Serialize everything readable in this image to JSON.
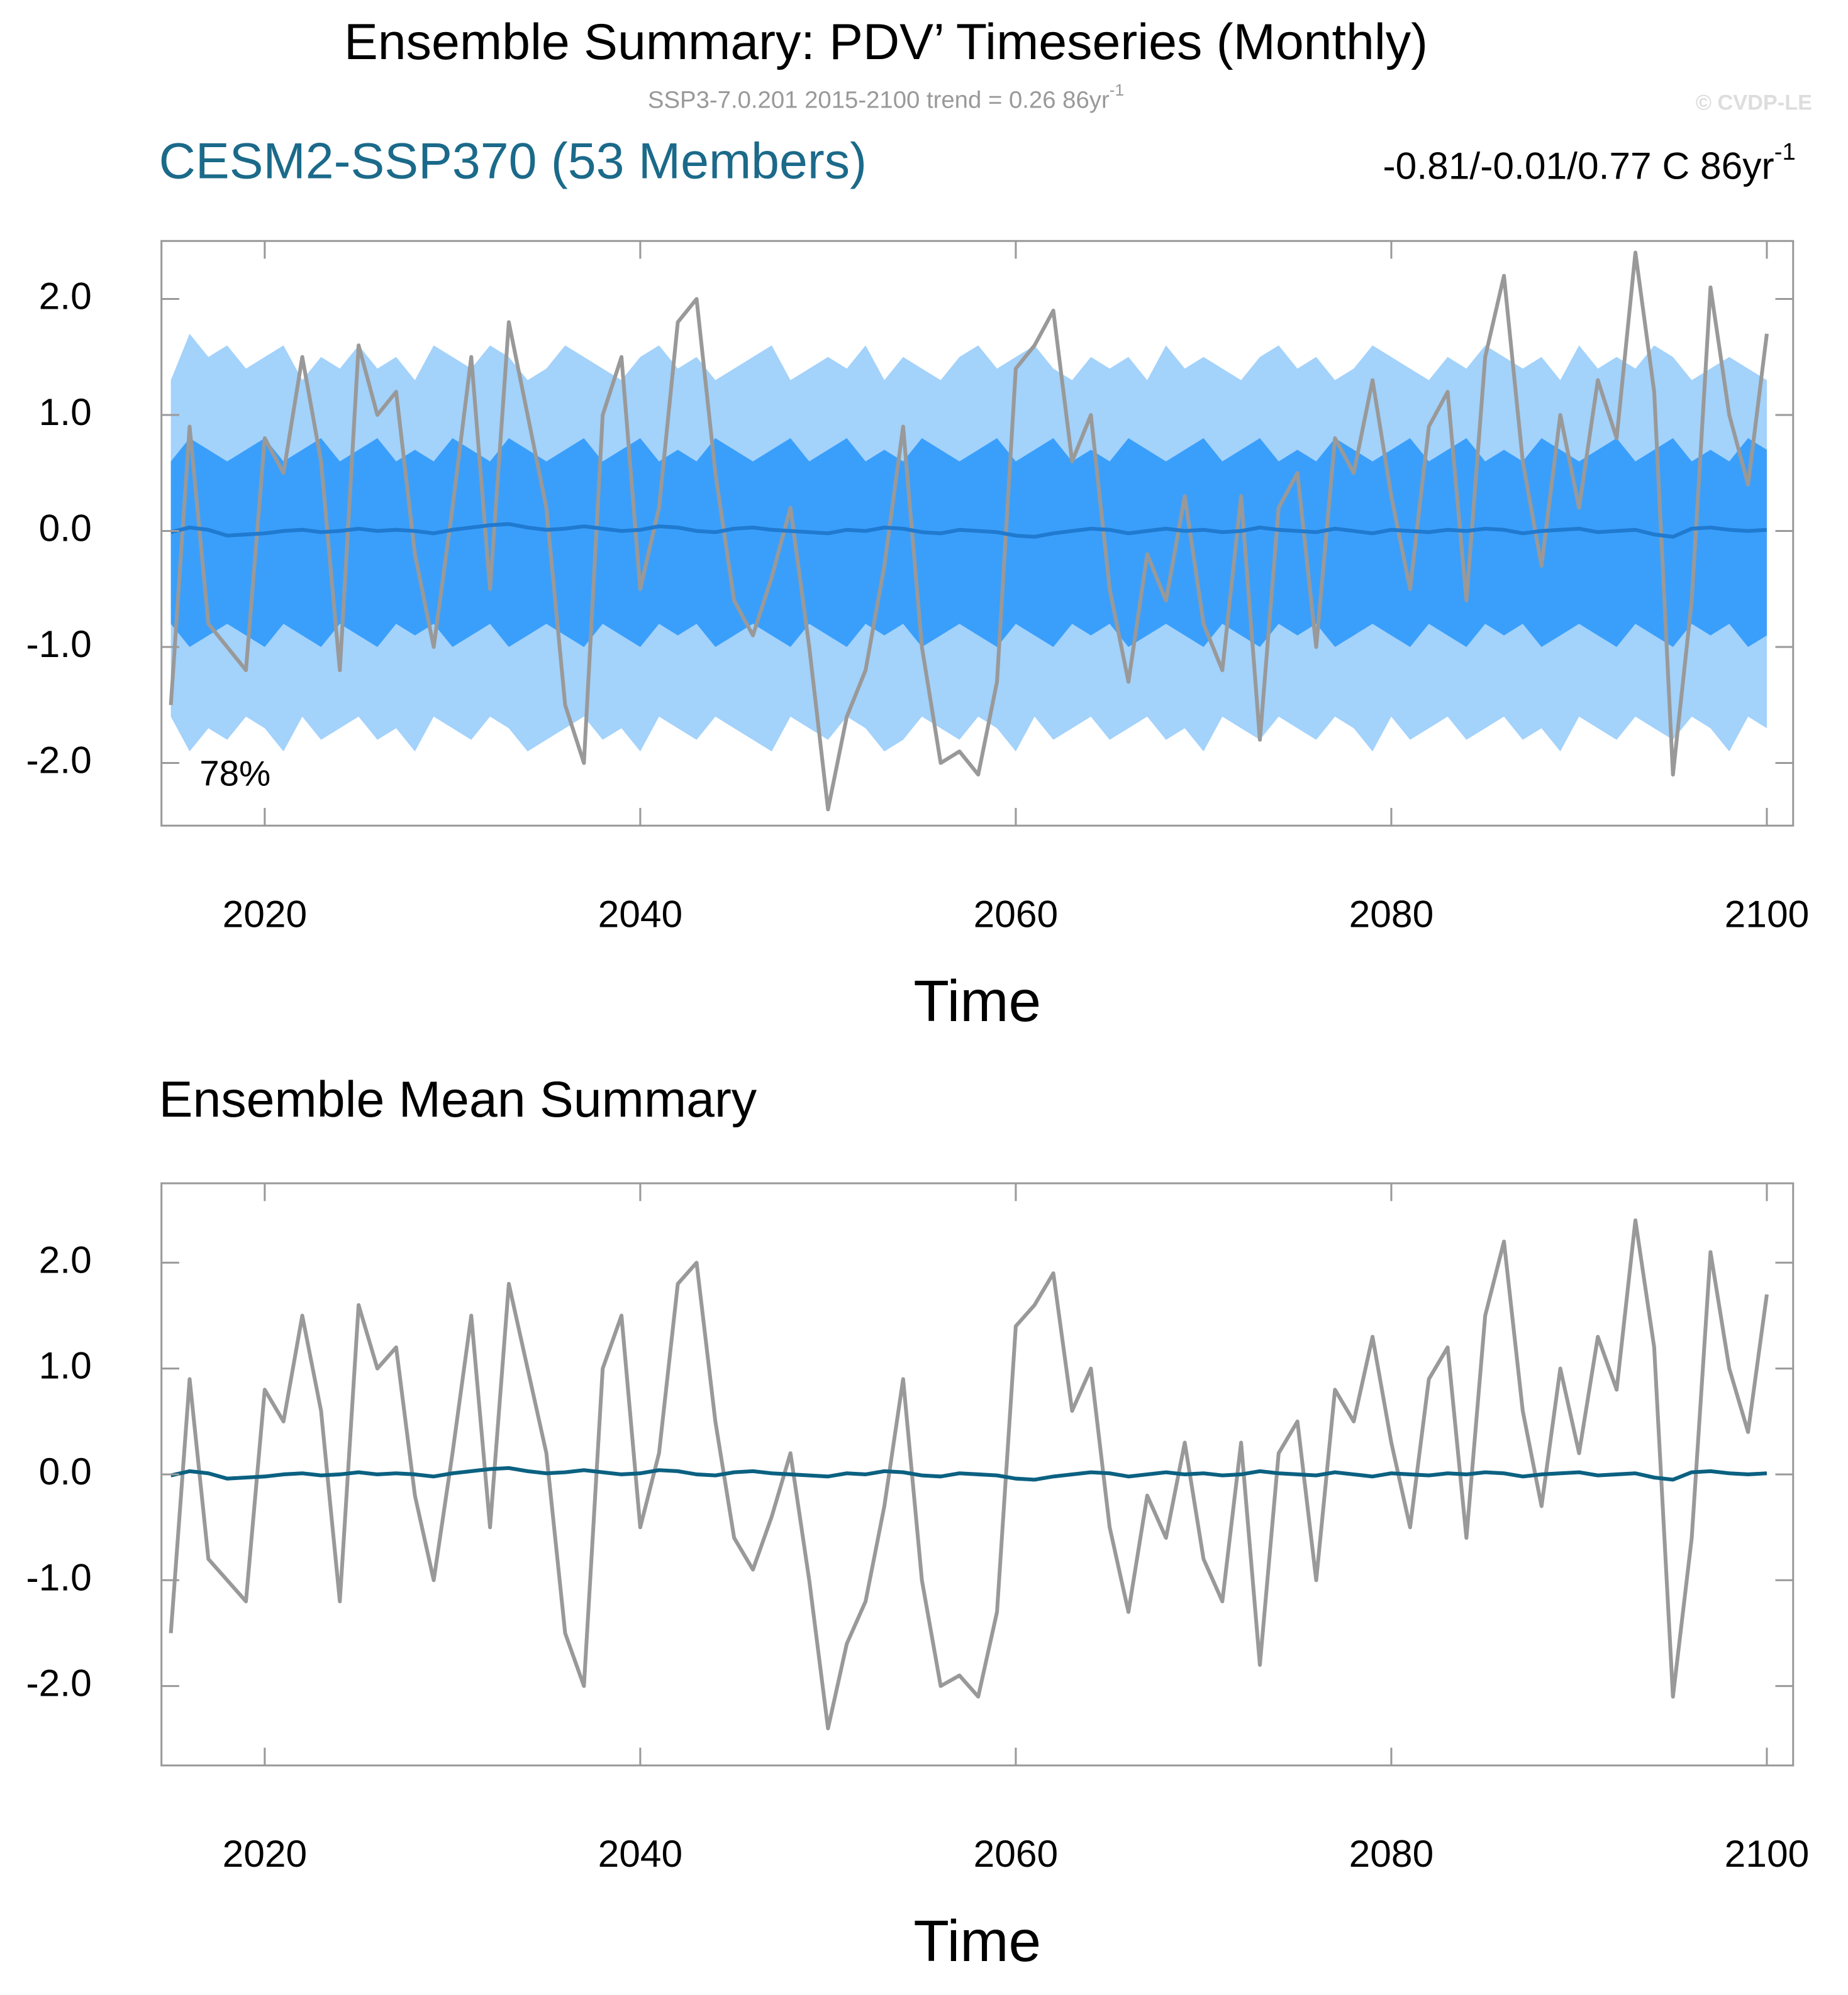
{
  "chart_data": [
    {
      "type": "line",
      "title": "Ensemble Summary: PDV’ Timeseries (Monthly)",
      "subtitle": {
        "text": "SSP3-7.0.201 2015-2100 trend = 0.26 86yr",
        "sup": "-1"
      },
      "copyright": "© CVDP-LE",
      "left_title": "CESM2-SSP370 (53 Members)",
      "left_title_color": "#1b6a8a",
      "right_title": {
        "text": "-0.81/-0.01/0.77 C 86yr",
        "sup": "-1"
      },
      "annotation": "78%",
      "xlabel": "Time",
      "x": [
        2015,
        2016,
        2017,
        2018,
        2019,
        2020,
        2021,
        2022,
        2023,
        2024,
        2025,
        2026,
        2027,
        2028,
        2029,
        2030,
        2031,
        2032,
        2033,
        2034,
        2035,
        2036,
        2037,
        2038,
        2039,
        2040,
        2041,
        2042,
        2043,
        2044,
        2045,
        2046,
        2047,
        2048,
        2049,
        2050,
        2051,
        2052,
        2053,
        2054,
        2055,
        2056,
        2057,
        2058,
        2059,
        2060,
        2061,
        2062,
        2063,
        2064,
        2065,
        2066,
        2067,
        2068,
        2069,
        2070,
        2071,
        2072,
        2073,
        2074,
        2075,
        2076,
        2077,
        2078,
        2079,
        2080,
        2081,
        2082,
        2083,
        2084,
        2085,
        2086,
        2087,
        2088,
        2089,
        2090,
        2091,
        2092,
        2093,
        2094,
        2095,
        2096,
        2097,
        2098,
        2099,
        2100
      ],
      "xlim": [
        2014.5,
        2101.4
      ],
      "xticks": [
        2020,
        2040,
        2060,
        2080,
        2100
      ],
      "ylim": [
        -2.54,
        2.5
      ],
      "yticks": [
        {
          "value": -2,
          "label": "-2.0"
        },
        {
          "value": -1,
          "label": "-1.0"
        },
        {
          "value": 0,
          "label": "0.0"
        },
        {
          "value": 1,
          "label": "1.0"
        },
        {
          "value": 2,
          "label": "2.0"
        }
      ],
      "bands": [
        {
          "color": "#a3d2fb",
          "upper": [
            1.3,
            1.7,
            1.5,
            1.6,
            1.4,
            1.5,
            1.6,
            1.3,
            1.5,
            1.4,
            1.6,
            1.4,
            1.5,
            1.3,
            1.6,
            1.5,
            1.4,
            1.6,
            1.5,
            1.3,
            1.4,
            1.6,
            1.5,
            1.4,
            1.3,
            1.5,
            1.6,
            1.4,
            1.5,
            1.3,
            1.4,
            1.5,
            1.6,
            1.3,
            1.4,
            1.5,
            1.4,
            1.6,
            1.3,
            1.5,
            1.4,
            1.3,
            1.5,
            1.6,
            1.4,
            1.5,
            1.6,
            1.4,
            1.3,
            1.5,
            1.4,
            1.5,
            1.3,
            1.6,
            1.4,
            1.5,
            1.4,
            1.3,
            1.5,
            1.6,
            1.4,
            1.5,
            1.3,
            1.4,
            1.6,
            1.5,
            1.4,
            1.3,
            1.5,
            1.4,
            1.6,
            1.5,
            1.4,
            1.5,
            1.3,
            1.6,
            1.4,
            1.5,
            1.4,
            1.6,
            1.5,
            1.3,
            1.4,
            1.5,
            1.4,
            1.3
          ],
          "lower": [
            -1.6,
            -1.9,
            -1.7,
            -1.8,
            -1.6,
            -1.7,
            -1.9,
            -1.6,
            -1.8,
            -1.7,
            -1.6,
            -1.8,
            -1.7,
            -1.9,
            -1.6,
            -1.7,
            -1.8,
            -1.6,
            -1.7,
            -1.9,
            -1.8,
            -1.7,
            -1.6,
            -1.8,
            -1.7,
            -1.9,
            -1.6,
            -1.7,
            -1.8,
            -1.6,
            -1.7,
            -1.8,
            -1.9,
            -1.6,
            -1.7,
            -1.8,
            -1.6,
            -1.7,
            -1.9,
            -1.8,
            -1.6,
            -1.7,
            -1.8,
            -1.6,
            -1.7,
            -1.9,
            -1.6,
            -1.8,
            -1.7,
            -1.6,
            -1.8,
            -1.7,
            -1.6,
            -1.8,
            -1.7,
            -1.9,
            -1.6,
            -1.7,
            -1.8,
            -1.6,
            -1.7,
            -1.8,
            -1.6,
            -1.7,
            -1.9,
            -1.6,
            -1.8,
            -1.7,
            -1.6,
            -1.8,
            -1.7,
            -1.6,
            -1.8,
            -1.7,
            -1.9,
            -1.6,
            -1.7,
            -1.8,
            -1.6,
            -1.7,
            -1.8,
            -1.6,
            -1.7,
            -1.9,
            -1.6,
            -1.7
          ]
        },
        {
          "color": "#3a9ffb",
          "upper": [
            0.6,
            0.8,
            0.7,
            0.6,
            0.7,
            0.8,
            0.6,
            0.7,
            0.8,
            0.6,
            0.7,
            0.8,
            0.6,
            0.7,
            0.6,
            0.8,
            0.7,
            0.6,
            0.8,
            0.7,
            0.6,
            0.7,
            0.8,
            0.6,
            0.7,
            0.8,
            0.6,
            0.7,
            0.6,
            0.8,
            0.7,
            0.6,
            0.7,
            0.8,
            0.6,
            0.7,
            0.8,
            0.6,
            0.7,
            0.6,
            0.8,
            0.7,
            0.6,
            0.7,
            0.8,
            0.6,
            0.7,
            0.8,
            0.6,
            0.7,
            0.6,
            0.8,
            0.7,
            0.6,
            0.7,
            0.8,
            0.6,
            0.7,
            0.8,
            0.6,
            0.7,
            0.6,
            0.8,
            0.7,
            0.6,
            0.7,
            0.8,
            0.6,
            0.7,
            0.8,
            0.6,
            0.7,
            0.6,
            0.8,
            0.7,
            0.6,
            0.7,
            0.8,
            0.6,
            0.7,
            0.8,
            0.6,
            0.7,
            0.6,
            0.8,
            0.7
          ],
          "lower": [
            -0.8,
            -1.0,
            -0.9,
            -0.8,
            -0.9,
            -1.0,
            -0.8,
            -0.9,
            -1.0,
            -0.8,
            -0.9,
            -1.0,
            -0.8,
            -0.9,
            -0.8,
            -1.0,
            -0.9,
            -0.8,
            -1.0,
            -0.9,
            -0.8,
            -0.9,
            -1.0,
            -0.8,
            -0.9,
            -1.0,
            -0.8,
            -0.9,
            -0.8,
            -1.0,
            -0.9,
            -0.8,
            -0.9,
            -1.0,
            -0.8,
            -0.9,
            -1.0,
            -0.8,
            -0.9,
            -0.8,
            -1.0,
            -0.9,
            -0.8,
            -0.9,
            -1.0,
            -0.8,
            -0.9,
            -1.0,
            -0.8,
            -0.9,
            -0.8,
            -1.0,
            -0.9,
            -0.8,
            -0.9,
            -1.0,
            -0.8,
            -0.9,
            -1.0,
            -0.8,
            -0.9,
            -0.8,
            -1.0,
            -0.9,
            -0.8,
            -0.9,
            -1.0,
            -0.8,
            -0.9,
            -1.0,
            -0.8,
            -0.9,
            -0.8,
            -1.0,
            -0.9,
            -0.8,
            -0.9,
            -1.0,
            -0.8,
            -0.9,
            -1.0,
            -0.8,
            -0.9,
            -0.8,
            -1.0,
            -0.9
          ]
        }
      ],
      "series": [
        {
          "color": "#999999",
          "width": 3,
          "values": [
            -1.5,
            0.9,
            -0.8,
            -1.0,
            -1.2,
            0.8,
            0.5,
            1.5,
            0.6,
            -1.2,
            1.6,
            1.0,
            1.2,
            -0.2,
            -1.0,
            0.2,
            1.5,
            -0.5,
            1.8,
            1.0,
            0.2,
            -1.5,
            -2.0,
            1.0,
            1.5,
            -0.5,
            0.2,
            1.8,
            2.0,
            0.5,
            -0.6,
            -0.9,
            -0.4,
            0.2,
            -1.0,
            -2.4,
            -1.6,
            -1.2,
            -0.3,
            0.9,
            -1.0,
            -2.0,
            -1.9,
            -2.1,
            -1.3,
            1.4,
            1.6,
            1.9,
            0.6,
            1.0,
            -0.5,
            -1.3,
            -0.2,
            -0.6,
            0.3,
            -0.8,
            -1.2,
            0.3,
            -1.8,
            0.2,
            0.5,
            -1.0,
            0.8,
            0.5,
            1.3,
            0.3,
            -0.5,
            0.9,
            1.2,
            -0.6,
            1.5,
            2.2,
            0.6,
            -0.3,
            1.0,
            0.2,
            1.3,
            0.8,
            2.4,
            1.2,
            -2.1,
            -0.6,
            2.1,
            1.0,
            0.4,
            1.7
          ]
        },
        {
          "color": "#1f7ad0",
          "width": 3,
          "values": [
            -0.01,
            0.03,
            0.01,
            -0.04,
            -0.03,
            -0.02,
            0.0,
            0.01,
            -0.01,
            0.0,
            0.02,
            0.0,
            0.01,
            0.0,
            -0.02,
            0.01,
            0.03,
            0.05,
            0.06,
            0.03,
            0.01,
            0.02,
            0.04,
            0.02,
            0.0,
            0.01,
            0.04,
            0.03,
            0.0,
            -0.01,
            0.02,
            0.03,
            0.01,
            0.0,
            -0.01,
            -0.02,
            0.01,
            0.0,
            0.03,
            0.02,
            -0.01,
            -0.02,
            0.01,
            0.0,
            -0.01,
            -0.04,
            -0.05,
            -0.02,
            0.0,
            0.02,
            0.01,
            -0.02,
            0.0,
            0.02,
            0.0,
            0.01,
            -0.01,
            0.0,
            0.03,
            0.01,
            0.0,
            -0.01,
            0.02,
            0.0,
            -0.02,
            0.01,
            0.0,
            -0.01,
            0.01,
            0.0,
            0.02,
            0.01,
            -0.02,
            0.0,
            0.01,
            0.02,
            -0.01,
            0.0,
            0.01,
            -0.03,
            -0.05,
            0.02,
            0.03,
            0.01,
            0.0,
            0.01
          ]
        }
      ]
    },
    {
      "type": "line",
      "left_title": "Ensemble Mean Summary",
      "left_title_color": "#000000",
      "xlabel": "Time",
      "x": [
        2015,
        2016,
        2017,
        2018,
        2019,
        2020,
        2021,
        2022,
        2023,
        2024,
        2025,
        2026,
        2027,
        2028,
        2029,
        2030,
        2031,
        2032,
        2033,
        2034,
        2035,
        2036,
        2037,
        2038,
        2039,
        2040,
        2041,
        2042,
        2043,
        2044,
        2045,
        2046,
        2047,
        2048,
        2049,
        2050,
        2051,
        2052,
        2053,
        2054,
        2055,
        2056,
        2057,
        2058,
        2059,
        2060,
        2061,
        2062,
        2063,
        2064,
        2065,
        2066,
        2067,
        2068,
        2069,
        2070,
        2071,
        2072,
        2073,
        2074,
        2075,
        2076,
        2077,
        2078,
        2079,
        2080,
        2081,
        2082,
        2083,
        2084,
        2085,
        2086,
        2087,
        2088,
        2089,
        2090,
        2091,
        2092,
        2093,
        2094,
        2095,
        2096,
        2097,
        2098,
        2099,
        2100
      ],
      "xlim": [
        2014.5,
        2101.4
      ],
      "xticks": [
        2020,
        2040,
        2060,
        2080,
        2100
      ],
      "ylim": [
        -2.75,
        2.75
      ],
      "yticks": [
        {
          "value": -2,
          "label": "-2.0"
        },
        {
          "value": -1,
          "label": "-1.0"
        },
        {
          "value": 0,
          "label": "0.0"
        },
        {
          "value": 1,
          "label": "1.0"
        },
        {
          "value": 2,
          "label": "2.0"
        }
      ],
      "series": [
        {
          "color": "#999999",
          "width": 3,
          "values": [
            -1.5,
            0.9,
            -0.8,
            -1.0,
            -1.2,
            0.8,
            0.5,
            1.5,
            0.6,
            -1.2,
            1.6,
            1.0,
            1.2,
            -0.2,
            -1.0,
            0.2,
            1.5,
            -0.5,
            1.8,
            1.0,
            0.2,
            -1.5,
            -2.0,
            1.0,
            1.5,
            -0.5,
            0.2,
            1.8,
            2.0,
            0.5,
            -0.6,
            -0.9,
            -0.4,
            0.2,
            -1.0,
            -2.4,
            -1.6,
            -1.2,
            -0.3,
            0.9,
            -1.0,
            -2.0,
            -1.9,
            -2.1,
            -1.3,
            1.4,
            1.6,
            1.9,
            0.6,
            1.0,
            -0.5,
            -1.3,
            -0.2,
            -0.6,
            0.3,
            -0.8,
            -1.2,
            0.3,
            -1.8,
            0.2,
            0.5,
            -1.0,
            0.8,
            0.5,
            1.3,
            0.3,
            -0.5,
            0.9,
            1.2,
            -0.6,
            1.5,
            2.2,
            0.6,
            -0.3,
            1.0,
            0.2,
            1.3,
            0.8,
            2.4,
            1.2,
            -2.1,
            -0.6,
            2.1,
            1.0,
            0.4,
            1.7
          ]
        },
        {
          "color": "#0b6181",
          "width": 3,
          "values": [
            -0.01,
            0.03,
            0.01,
            -0.04,
            -0.03,
            -0.02,
            0.0,
            0.01,
            -0.01,
            0.0,
            0.02,
            0.0,
            0.01,
            0.0,
            -0.02,
            0.01,
            0.03,
            0.05,
            0.06,
            0.03,
            0.01,
            0.02,
            0.04,
            0.02,
            0.0,
            0.01,
            0.04,
            0.03,
            0.0,
            -0.01,
            0.02,
            0.03,
            0.01,
            0.0,
            -0.01,
            -0.02,
            0.01,
            0.0,
            0.03,
            0.02,
            -0.01,
            -0.02,
            0.01,
            0.0,
            -0.01,
            -0.04,
            -0.05,
            -0.02,
            0.0,
            0.02,
            0.01,
            -0.02,
            0.0,
            0.02,
            0.0,
            0.01,
            -0.01,
            0.0,
            0.03,
            0.01,
            0.0,
            -0.01,
            0.02,
            0.0,
            -0.02,
            0.01,
            0.0,
            -0.01,
            0.01,
            0.0,
            0.02,
            0.01,
            -0.02,
            0.0,
            0.01,
            0.02,
            -0.01,
            0.0,
            0.01,
            -0.03,
            -0.05,
            0.02,
            0.03,
            0.01,
            0.0,
            0.01
          ]
        }
      ]
    }
  ]
}
